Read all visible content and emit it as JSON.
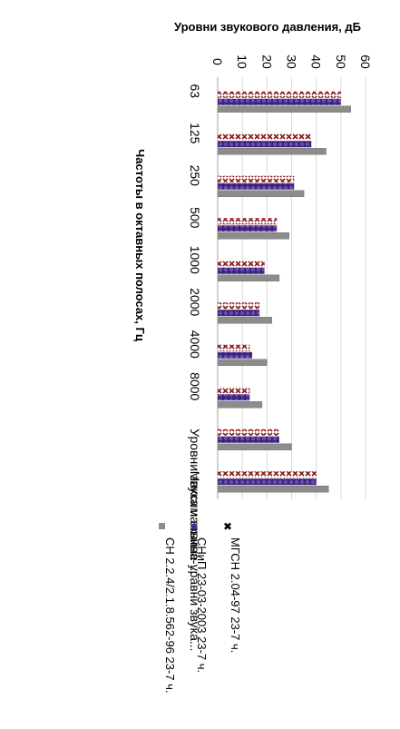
{
  "chart_data": {
    "type": "bar",
    "orientation": "rotated-90-clockwise",
    "title": "",
    "ylabel": "Уровни звукового давления, дБ",
    "xlabel": "Частоты в октавных полосах, Гц",
    "ylim": [
      0,
      60
    ],
    "yticks": [
      0,
      10,
      20,
      30,
      40,
      50,
      60
    ],
    "grid": true,
    "legend_position": "bottom",
    "categories": [
      "63",
      "125",
      "250",
      "500",
      "1000",
      "2000",
      "4000",
      "8000",
      "Уровни звука и эквива-...",
      "Максимальные уравни звука..."
    ],
    "series": [
      {
        "name": "МГСН 2.04-97 23-7 ч.",
        "marker": "x-pattern",
        "color": "#8b1a1a",
        "values": [
          50,
          38,
          31,
          24,
          19,
          17,
          13,
          13,
          25,
          40
        ]
      },
      {
        "name": "СНиП 23-03-2003 23-7 ч.",
        "marker": "dot-pattern",
        "color": "#4b2a8c",
        "values": [
          50,
          38,
          31,
          24,
          19,
          17,
          14,
          13,
          25,
          40
        ]
      },
      {
        "name": "СН 2.2.4/2.1.8.562-96 23-7 ч.",
        "marker": "solid",
        "color": "#8c8c8c",
        "values": [
          54,
          44,
          35,
          29,
          25,
          22,
          20,
          18,
          30,
          45
        ]
      }
    ]
  }
}
